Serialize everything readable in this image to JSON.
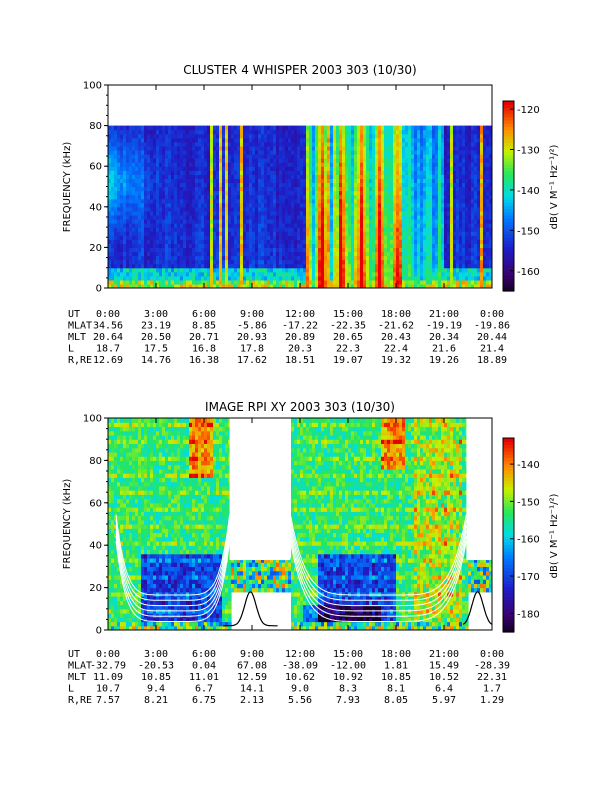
{
  "chart_data": [
    {
      "type": "heatmap",
      "title": "CLUSTER 4 WHISPER 2003 303 (10/30)",
      "ylabel": "FREQUENCY (kHz)",
      "ylim": [
        0,
        100
      ],
      "y_ticks": [
        "0",
        "20",
        "40",
        "60",
        "80",
        "100"
      ],
      "data_top_khz": 80,
      "colorbar": {
        "label": "dB( V M⁻¹ Hz⁻¹/²)",
        "range": [
          -165,
          -118
        ],
        "ticks": [
          "-120",
          "-130",
          "-140",
          "-150",
          "-160"
        ]
      },
      "x_hours": [
        0,
        3,
        6,
        9,
        12,
        15,
        18,
        21,
        24
      ],
      "ephemeris": {
        "rows": [
          {
            "label": "UT",
            "values": [
              "0:00",
              "3:00",
              "6:00",
              "9:00",
              "12:00",
              "15:00",
              "18:00",
              "21:00",
              "0:00"
            ]
          },
          {
            "label": "MLAT",
            "values": [
              "34.56",
              "23.19",
              "8.85",
              "-5.86",
              "-17.22",
              "-22.35",
              "-21.62",
              "-19.19",
              "-19.86"
            ]
          },
          {
            "label": "MLT",
            "values": [
              "20.64",
              "20.50",
              "20.71",
              "20.93",
              "20.89",
              "20.65",
              "20.43",
              "20.34",
              "20.44"
            ]
          },
          {
            "label": "L",
            "values": [
              "18.7",
              "17.5",
              "16.8",
              "17.8",
              "20.3",
              "22.3",
              "22.4",
              "21.6",
              "21.4"
            ]
          },
          {
            "label": "R,RE",
            "values": [
              "12.69",
              "14.76",
              "16.38",
              "17.62",
              "18.51",
              "19.07",
              "19.32",
              "19.26",
              "18.89"
            ]
          }
        ]
      }
    },
    {
      "type": "heatmap",
      "title": "IMAGE RPI XY 2003 303 (10/30)",
      "ylabel": "FREQUENCY (kHz)",
      "ylim": [
        0,
        100
      ],
      "y_ticks": [
        "0",
        "20",
        "40",
        "60",
        "80",
        "100"
      ],
      "colorbar": {
        "label": "dB( V M⁻¹ Hz⁻¹/²)",
        "range": [
          -185,
          -133
        ],
        "ticks": [
          "-140",
          "-150",
          "-160",
          "-170",
          "-180"
        ]
      },
      "x_hours": [
        0,
        3,
        6,
        9,
        12,
        15,
        18,
        21,
        24
      ],
      "data_gaps_hours": [
        [
          7.6,
          11.4
        ],
        [
          22.4,
          24.0
        ]
      ],
      "ephemeris": {
        "rows": [
          {
            "label": "UT",
            "values": [
              "0:00",
              "3:00",
              "6:00",
              "9:00",
              "12:00",
              "15:00",
              "18:00",
              "21:00",
              "0:00"
            ]
          },
          {
            "label": "MLAT",
            "values": [
              "-32.79",
              "-20.53",
              "0.04",
              "67.08",
              "-38.09",
              "-12.00",
              "1.81",
              "15.49",
              "-28.39"
            ]
          },
          {
            "label": "MLT",
            "values": [
              "11.09",
              "10.85",
              "11.01",
              "12.59",
              "10.62",
              "10.92",
              "10.85",
              "10.52",
              "22.31"
            ]
          },
          {
            "label": "L",
            "values": [
              "10.7",
              "9.4",
              "6.7",
              "14.1",
              "9.0",
              "8.3",
              "8.1",
              "6.4",
              "1.7"
            ]
          },
          {
            "label": "R,RE",
            "values": [
              "7.57",
              "8.21",
              "6.75",
              "2.13",
              "5.56",
              "7.93",
              "8.05",
              "5.97",
              "1.29"
            ]
          }
        ]
      }
    }
  ]
}
